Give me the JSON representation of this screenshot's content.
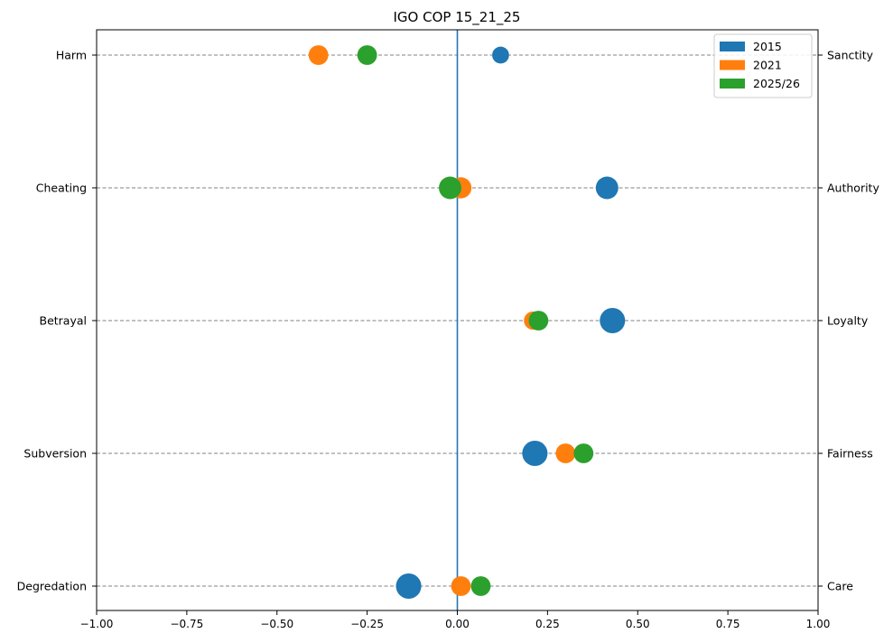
{
  "chart_data": {
    "type": "scatter",
    "title": "IGO COP 15_21_25",
    "xlabel": "",
    "ylabel": "",
    "xlim": [
      -1.0,
      1.0
    ],
    "x_ticks": [
      -1.0,
      -0.75,
      -0.5,
      -0.25,
      0.0,
      0.25,
      0.5,
      0.75,
      1.0
    ],
    "x_tick_labels": [
      "−1.00",
      "−0.75",
      "−0.50",
      "−0.25",
      "0.00",
      "0.25",
      "0.50",
      "0.75",
      "1.00"
    ],
    "left_labels": [
      "Harm",
      "Cheating",
      "Betrayal",
      "Subversion",
      "Degredation"
    ],
    "right_labels": [
      "Sanctity",
      "Authority",
      "Loyalty",
      "Fairness",
      "Care"
    ],
    "grid": "horizontal dashed",
    "reference_line_x": 0.0,
    "legend_position": "top-right",
    "series": [
      {
        "name": "2015",
        "color": "#1f77b4",
        "values": [
          0.12,
          0.415,
          0.43,
          0.215,
          -0.135
        ]
      },
      {
        "name": "2021",
        "color": "#ff7f0e",
        "values": [
          -0.385,
          0.01,
          0.21,
          0.3,
          0.01
        ]
      },
      {
        "name": "2025/26",
        "color": "#2ca02c",
        "values": [
          -0.25,
          -0.02,
          0.225,
          0.35,
          0.065
        ]
      }
    ],
    "marker_sizes": [
      [
        12,
        16,
        18,
        18,
        18
      ],
      [
        14,
        15,
        13,
        14,
        14
      ],
      [
        14,
        16,
        14,
        14,
        14
      ]
    ]
  }
}
